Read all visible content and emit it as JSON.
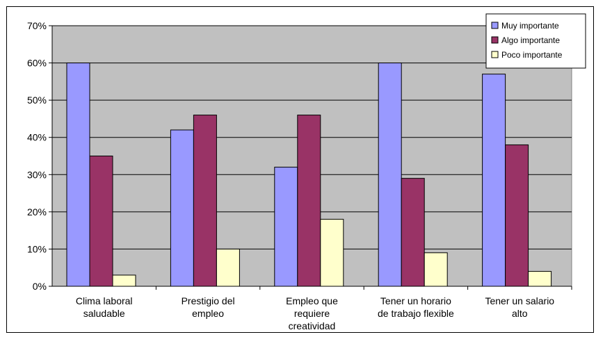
{
  "chart_data": {
    "type": "bar",
    "title": "",
    "xlabel": "",
    "ylabel": "",
    "ylim": [
      0,
      70
    ],
    "y_ticks": [
      0,
      10,
      20,
      30,
      40,
      50,
      60,
      70
    ],
    "y_tick_format": "percent",
    "grid": true,
    "legend_position": "top-right",
    "plot_background": "#c0c0c0",
    "categories": [
      [
        "Clima laboral",
        "saludable"
      ],
      [
        "Prestigio del",
        "empleo"
      ],
      [
        "Empleo que",
        "requiere",
        "creatividad"
      ],
      [
        "Tener un horario",
        "de trabajo flexible"
      ],
      [
        "Tener un salario",
        "alto"
      ]
    ],
    "series": [
      {
        "name": "Muy importante",
        "color": "#9999ff",
        "values": [
          60,
          42,
          32,
          60,
          57
        ]
      },
      {
        "name": "Algo importante",
        "color": "#993366",
        "values": [
          35,
          46,
          46,
          29,
          38
        ]
      },
      {
        "name": "Poco importante",
        "color": "#ffffcc",
        "values": [
          3,
          10,
          18,
          9,
          4
        ]
      }
    ]
  }
}
